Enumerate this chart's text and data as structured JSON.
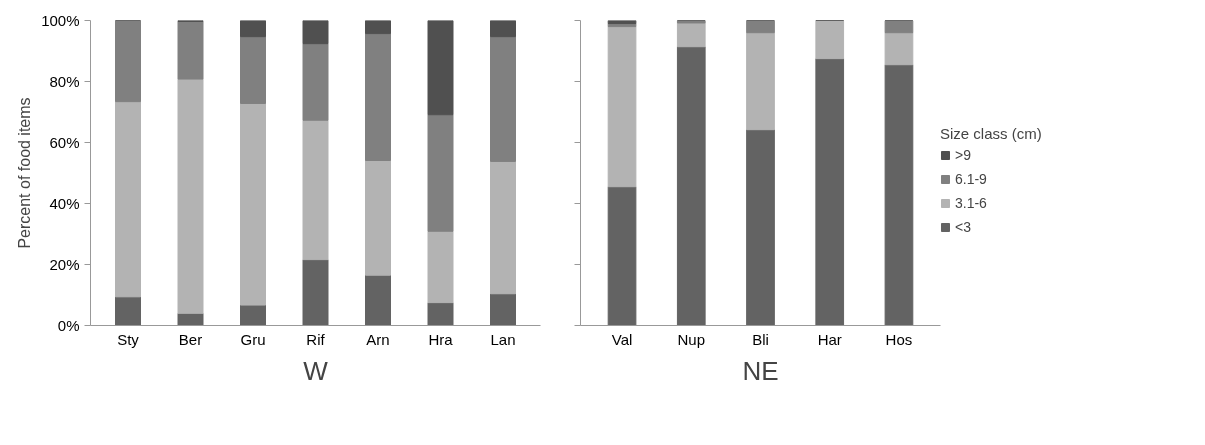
{
  "chart_data": [
    {
      "type": "bar",
      "stacked": true,
      "xlabel": "W",
      "ylabel": "Percent of food items",
      "categories": [
        "Sty",
        "Ber",
        "Gru",
        "Rif",
        "Arn",
        "Hra",
        "Lan"
      ],
      "series": [
        {
          "color": "#636363",
          "values": [
            9.4,
            4,
            6.7,
            21.6,
            16.5,
            7.5,
            10.4
          ]
        },
        {
          "color": "#b3b3b3",
          "values": [
            64.0,
            76.8,
            66.1,
            45.7,
            37.6,
            23.4,
            43.4
          ]
        },
        {
          "color": "#808080",
          "values": [
            26.6,
            18.9,
            21.9,
            25.1,
            41.6,
            38.2,
            40.9
          ]
        },
        {
          "color": "#505050",
          "values": [
            0,
            0.3,
            5.3,
            7.6,
            4.3,
            30.9,
            5.3
          ]
        }
      ],
      "ylim": [
        0,
        100
      ],
      "yticks": [
        {
          "value": 0,
          "label": "0%"
        },
        {
          "value": 20,
          "label": "20%"
        },
        {
          "value": 40,
          "label": "40%"
        },
        {
          "value": 60,
          "label": "60%"
        },
        {
          "value": 80,
          "label": "80%"
        },
        {
          "value": 100,
          "label": "100%"
        }
      ]
    },
    {
      "type": "bar",
      "stacked": true,
      "xlabel": "NE",
      "legend_title": "Size class (cm)",
      "legend": "right",
      "tick_labels": "x",
      "categories": [
        "Val",
        "Nup",
        "Bli",
        "Har",
        "Hos"
      ],
      "series": [
        {
          "name": "<3",
          "color": "#636363",
          "values": [
            45.5,
            91.4,
            64.2,
            87.5,
            85.5
          ]
        },
        {
          "name": "3.1-6",
          "color": "#b3b3b3",
          "values": [
            52.5,
            7.8,
            31.8,
            12.5,
            10.5
          ]
        },
        {
          "name": "6.1-9",
          "color": "#808080",
          "values": [
            1.0,
            0.8,
            4.0,
            0,
            4.0
          ]
        },
        {
          "name": ">9",
          "color": "#505050",
          "values": [
            1.0,
            0,
            0,
            0,
            0
          ]
        }
      ],
      "ylim": [
        0,
        100
      ],
      "yticks": [
        {
          "value": 0,
          "label": null
        },
        {
          "value": 20,
          "label": null
        },
        {
          "value": 40,
          "label": null
        },
        {
          "value": 60,
          "label": null
        },
        {
          "value": 80,
          "label": null
        },
        {
          "value": 100,
          "label": null
        }
      ]
    }
  ]
}
